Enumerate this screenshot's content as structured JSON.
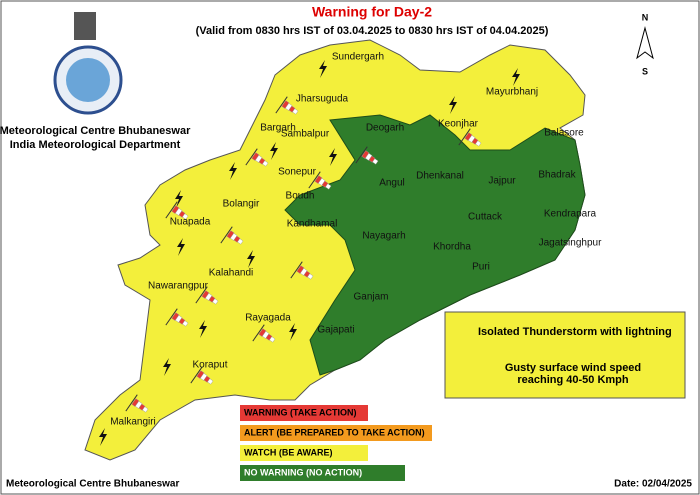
{
  "header": {
    "title": "Warning for Day-2",
    "subtitle": "(Valid from 0830 hrs IST of 03.04.2025 to 0830 hrs IST of 04.04.2025)",
    "org_line1": "Meteorological Centre Bhubaneswar",
    "org_line2": "India Meteorological Department"
  },
  "compass": {
    "north": "N",
    "south": "S"
  },
  "districts": [
    "Sundergarh",
    "Mayurbhanj",
    "Jharsuguda",
    "Bargarh",
    "Sambalpur",
    "Deogarh",
    "Keonjhar",
    "Balasore",
    "Bhadrak",
    "Sonepur",
    "Angul",
    "Dhenkanal",
    "Jajpur",
    "Boudh",
    "Bolangir",
    "Nuapada",
    "Cuttack",
    "Kendrapara",
    "Nayagarh",
    "Khordha",
    "Jagatsinghpur",
    "Kandhamal",
    "Puri",
    "Kalahandi",
    "Nawarangpur",
    "Ganjam",
    "Rayagada",
    "Gajapati",
    "Koraput",
    "Malkangiri"
  ],
  "symbol_legend": {
    "thunderstorm": "Isolated Thunderstorm with lightning",
    "wind": "Gusty surface wind speed reaching 40-50 Kmph"
  },
  "warning_legend": [
    "WARNING (TAKE ACTION)",
    "ALERT (BE PREPARED TO TAKE ACTION)",
    "WATCH (BE AWARE)",
    "NO WARNING (NO ACTION)"
  ],
  "footer": {
    "org": "Meteorological Centre Bhubaneswar",
    "date": "Date: 02/04/2025"
  }
}
